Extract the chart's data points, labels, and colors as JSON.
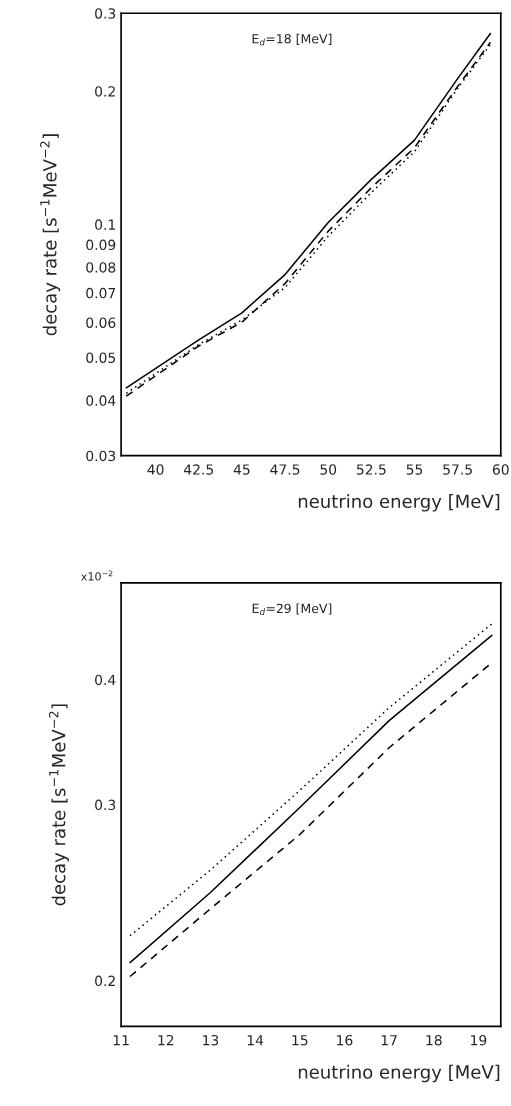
{
  "chart_data": [
    {
      "type": "line",
      "xlabel": "neutrino energy [MeV]",
      "ylabel": "decay rate [s$^{−1}$MeV$^{−2}$]",
      "annotations": [
        "E$_{d}$=18 [MeV]"
      ],
      "log": "y",
      "grid": false,
      "legend": false,
      "marker": "none",
      "xlim": [
        38,
        60
      ],
      "xticks": [
        40,
        42.5,
        45,
        47.5,
        50,
        52.5,
        55,
        57.5,
        60
      ],
      "ylim": [
        0.03,
        0.3
      ],
      "yticks": [
        0.03,
        0.04,
        0.05,
        0.06,
        0.07,
        0.08,
        0.09,
        0.1,
        0.2,
        0.3
      ],
      "x": [
        38.3,
        42.5,
        45,
        47.5,
        50,
        52.5,
        55,
        57.5,
        59.4
      ],
      "series": [
        {
          "color": "#000000",
          "line_style": "solid",
          "values": [
            0.0427,
            0.0548,
            0.0631,
            0.077,
            0.101,
            0.1264,
            0.155,
            0.2135,
            0.27
          ]
        },
        {
          "color": "#000000",
          "line_style": "dashed",
          "values": [
            0.0409,
            0.0531,
            0.0601,
            0.0735,
            0.0965,
            0.121,
            0.149,
            0.205,
            0.258
          ]
        },
        {
          "color": "#000000",
          "line_style": "dotted",
          "values": [
            0.0415,
            0.0535,
            0.0608,
            0.072,
            0.094,
            0.118,
            0.146,
            0.203,
            0.255
          ]
        }
      ]
    },
    {
      "type": "line",
      "xlabel": "neutrino energy [MeV]",
      "ylabel": "decay rate [s$^{−1}$MeV$^{−2}$]",
      "annotations": [
        "E$_{d}$=29 [MeV]",
        "x10$^{−2}$"
      ],
      "log": "y",
      "grid": false,
      "legend": false,
      "marker": "none",
      "xlim": [
        11,
        19.5
      ],
      "xticks": [
        11,
        12,
        13,
        14,
        15,
        16,
        17,
        18,
        19
      ],
      "ylim": [
        0.18,
        0.5
      ],
      "yticks": [
        0.2,
        0.3,
        0.4
      ],
      "x": [
        11.2,
        13,
        15,
        17,
        19.3
      ],
      "series": [
        {
          "color": "#000000",
          "line_style": "solid",
          "values": [
            0.2085,
            0.245,
            0.298,
            0.364,
            0.443
          ]
        },
        {
          "color": "#000000",
          "line_style": "dashed",
          "values": [
            0.2019,
            0.236,
            0.28,
            0.342,
            0.416
          ]
        },
        {
          "color": "#000000",
          "line_style": "dotted",
          "values": [
            0.2218,
            0.258,
            0.31,
            0.375,
            0.455
          ]
        }
      ]
    }
  ]
}
